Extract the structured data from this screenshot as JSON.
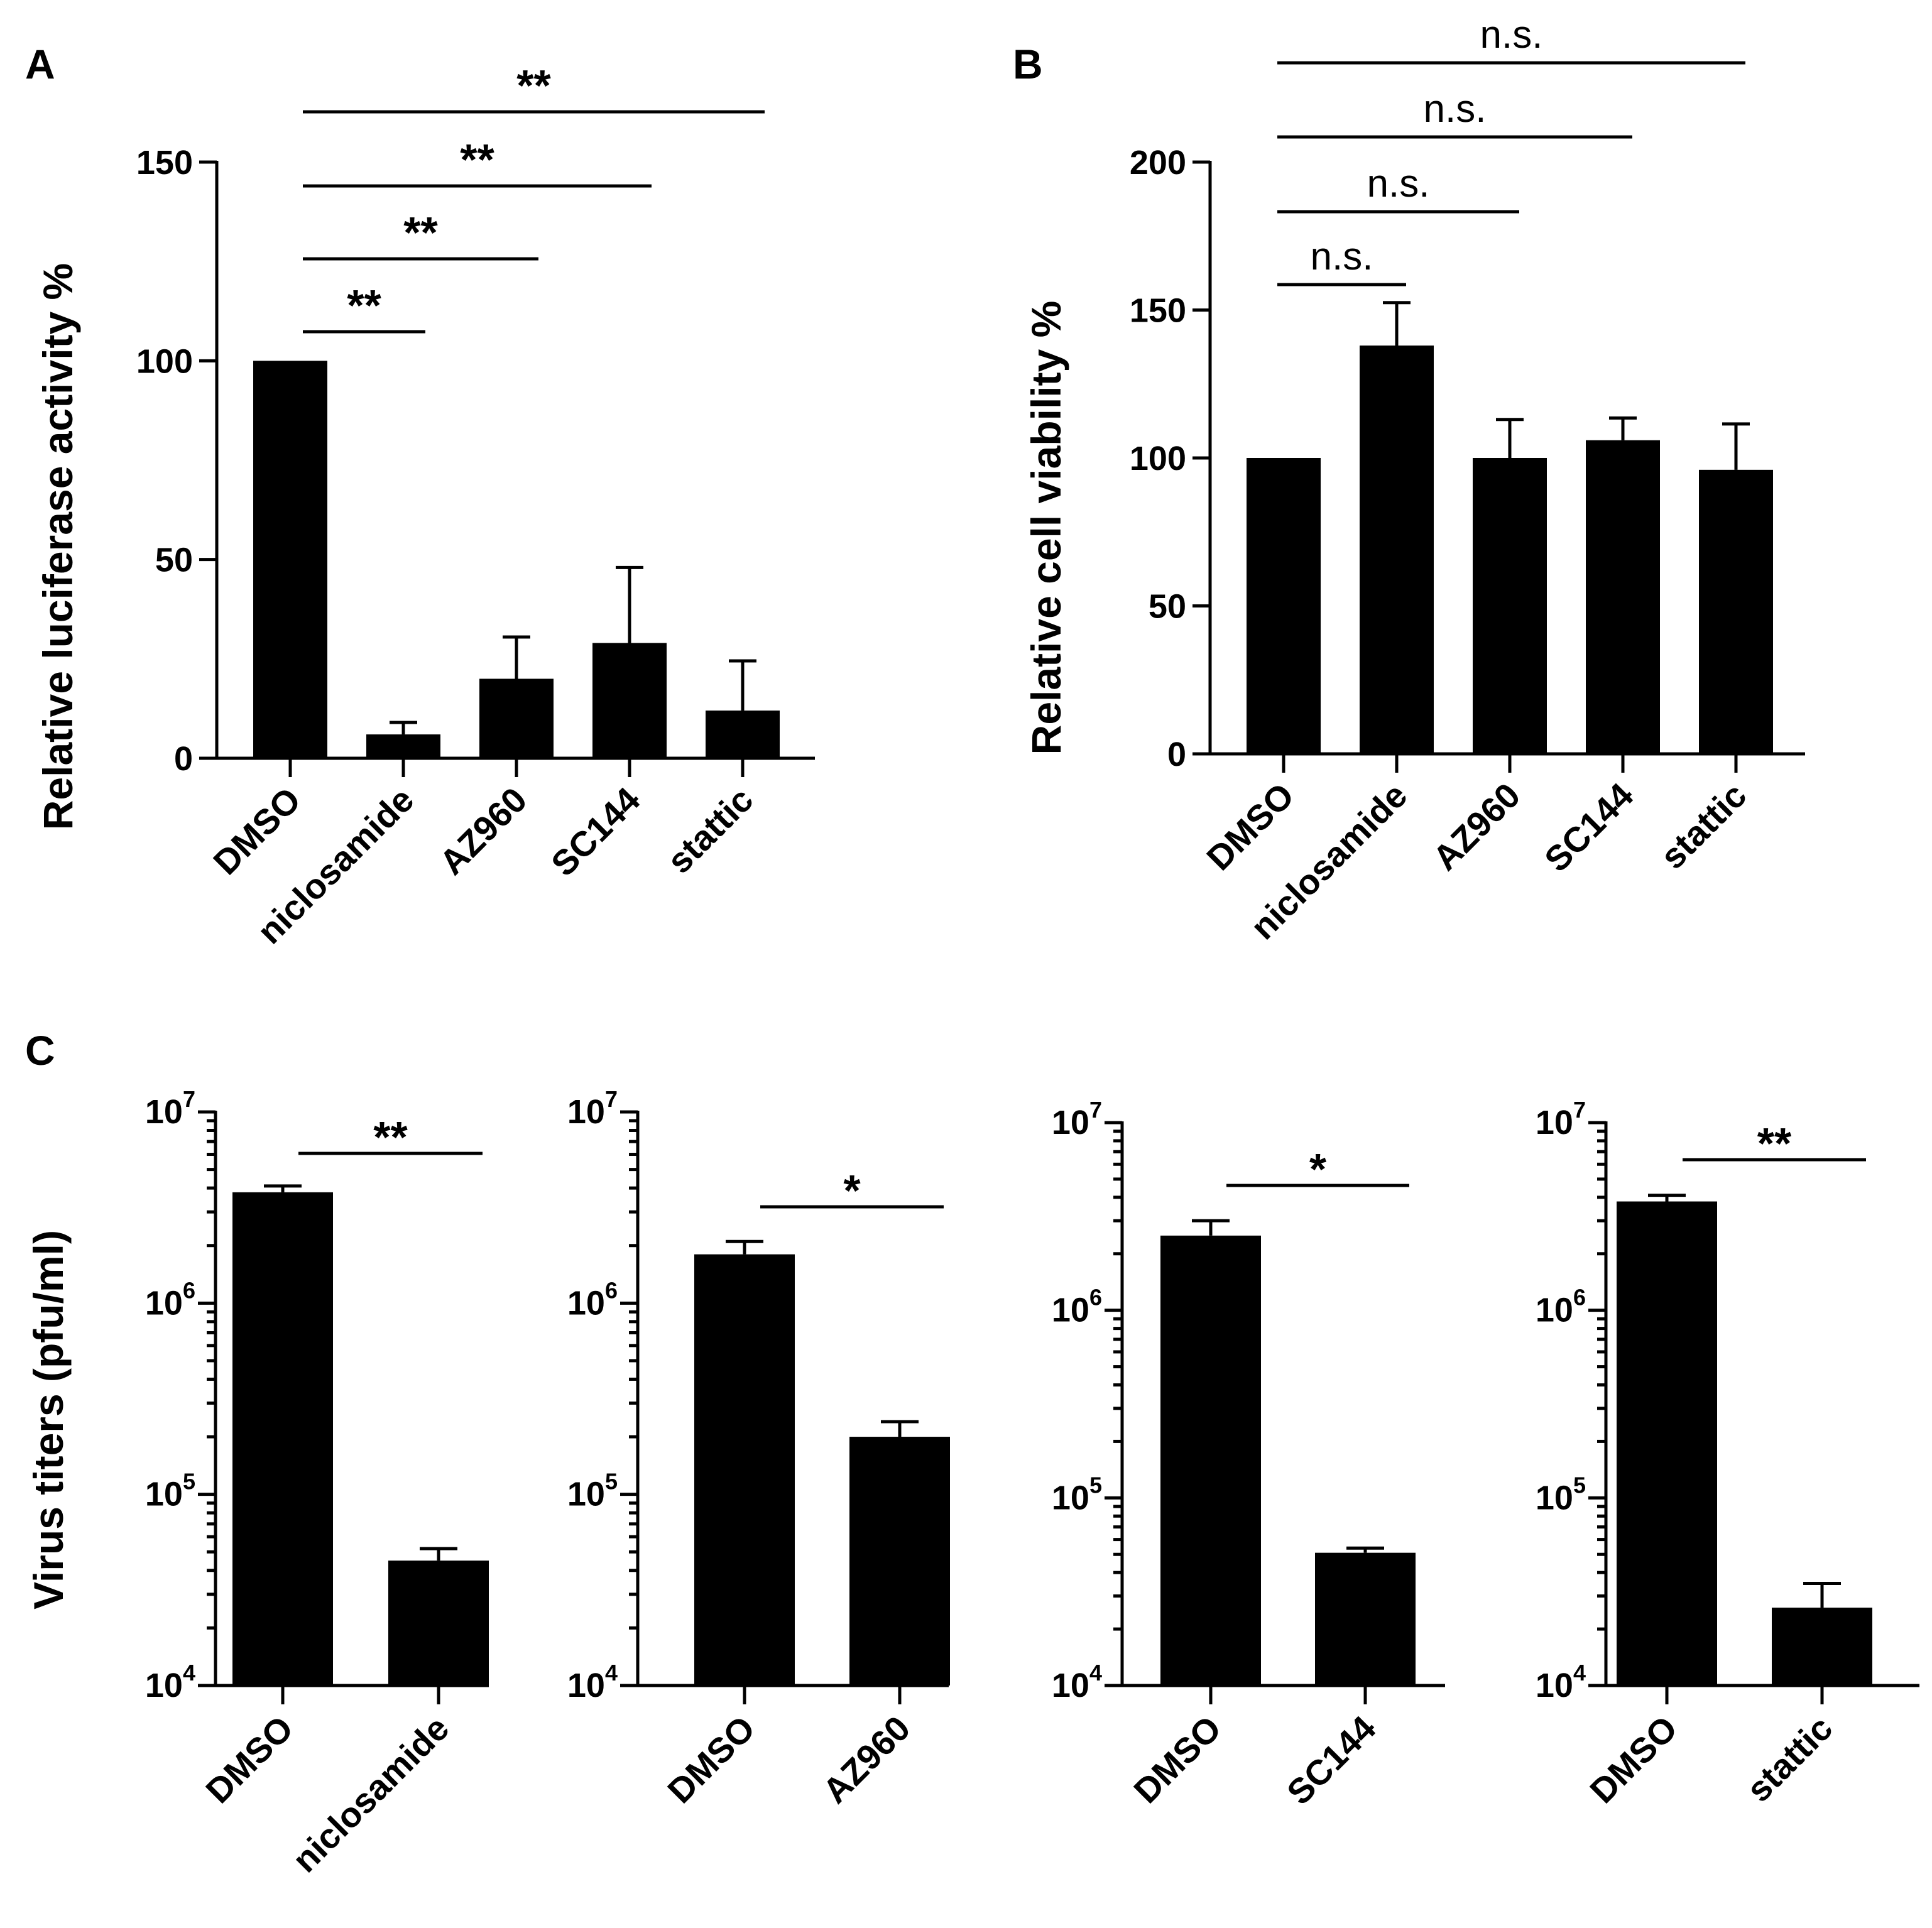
{
  "chart_data": [
    {
      "panel": "A",
      "type": "bar",
      "ylabel": "Relative luciferase activity %",
      "ylim": [
        0,
        150
      ],
      "yticks": [
        0,
        50,
        100,
        150
      ],
      "categories": [
        "DMSO",
        "niclosamide",
        "AZ960",
        "SC144",
        "stattic"
      ],
      "values": [
        100,
        6,
        20,
        29,
        12
      ],
      "errors": [
        0,
        3,
        10.5,
        19,
        12.5
      ],
      "comparisons": [
        {
          "from": 0,
          "to": 1,
          "label": "**"
        },
        {
          "from": 0,
          "to": 2,
          "label": "**"
        },
        {
          "from": 0,
          "to": 3,
          "label": "**"
        },
        {
          "from": 0,
          "to": 4,
          "label": "**"
        }
      ]
    },
    {
      "panel": "B",
      "type": "bar",
      "ylabel": "Relative cell viability %",
      "ylim": [
        0,
        200
      ],
      "yticks": [
        0,
        50,
        100,
        150,
        200
      ],
      "categories": [
        "DMSO",
        "niclosamide",
        "AZ960",
        "SC144",
        "stattic"
      ],
      "values": [
        100,
        138,
        100,
        106,
        96
      ],
      "errors": [
        0,
        14.5,
        13,
        7.5,
        15.5
      ],
      "comparisons": [
        {
          "from": 0,
          "to": 1,
          "label": "n.s."
        },
        {
          "from": 0,
          "to": 2,
          "label": "n.s."
        },
        {
          "from": 0,
          "to": 3,
          "label": "n.s."
        },
        {
          "from": 0,
          "to": 4,
          "label": "n.s."
        }
      ]
    },
    {
      "panel": "C",
      "type": "bar",
      "yscale": "log",
      "ylabel": "Virus titers (pfu/ml)",
      "ylim": [
        10000,
        10000000
      ],
      "ytick_base": "10",
      "ytick_exponents": [
        "4",
        "5",
        "6",
        "7"
      ],
      "subplots": [
        {
          "categories": [
            "DMSO",
            "niclosamide"
          ],
          "values": [
            3800000,
            45000
          ],
          "error_tops": [
            4100000,
            52000
          ],
          "comparison": {
            "label": "**"
          }
        },
        {
          "categories": [
            "DMSO",
            "AZ960"
          ],
          "values": [
            1800000,
            200000
          ],
          "error_tops": [
            2100000,
            240000
          ],
          "comparison": {
            "label": "*"
          }
        },
        {
          "categories": [
            "DMSO",
            "SC144"
          ],
          "values": [
            2500000,
            51000
          ],
          "error_tops": [
            3000000,
            54000
          ],
          "comparison": {
            "label": "*"
          }
        },
        {
          "categories": [
            "DMSO",
            "stattic"
          ],
          "values": [
            3800000,
            26000
          ],
          "error_tops": [
            4100000,
            35000
          ],
          "comparison": {
            "label": "**"
          }
        }
      ]
    }
  ]
}
